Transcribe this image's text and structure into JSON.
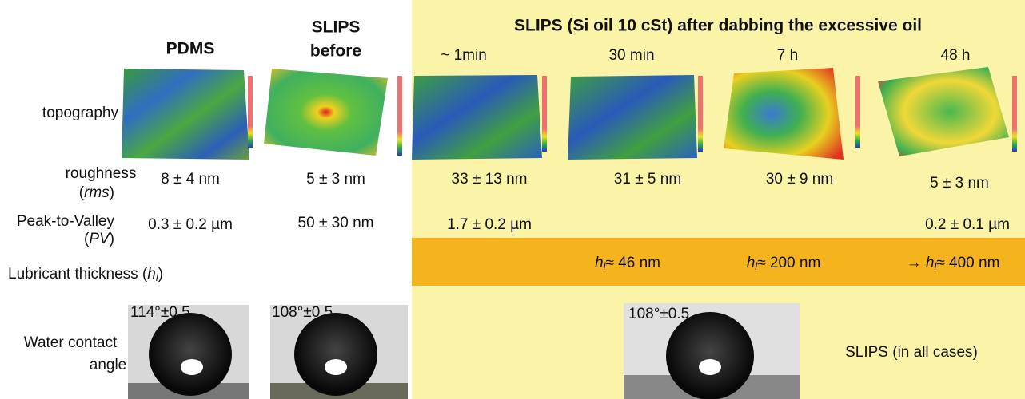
{
  "header": {
    "columns": [
      {
        "label": "PDMS"
      },
      {
        "label": [
          "SLIPS",
          "before"
        ]
      }
    ],
    "group_title": "SLIPS (Si oil 10 cSt) after dabbing the excessive oil",
    "group_columns": [
      "~ 1min",
      "30 min",
      "7 h",
      "48 h"
    ]
  },
  "rows": {
    "topography": {
      "label": "topography"
    },
    "roughness": {
      "label": "roughness",
      "symbol_open": "(",
      "symbol": "rms",
      "symbol_close": ")",
      "values": [
        "8 ± 4 nm",
        "5 ± 3 nm",
        "33 ± 13 nm",
        "31 ± 5 nm",
        "30 ± 9 nm",
        "5 ± 3 nm"
      ]
    },
    "peak_to_valley": {
      "label": "Peak-to-Valley",
      "symbol_open": "(",
      "symbol": "PV",
      "symbol_close": ")",
      "values": [
        "0.3 ± 0.2 µm",
        "50 ± 30 nm",
        "1.7 ± 0.2 µm",
        "0.2 ± 0.1 µm"
      ]
    },
    "lubricant_thickness": {
      "label": "Lubricant thickness (",
      "symbol": "h",
      "subscript": "l",
      "close": ")",
      "values": [
        {
          "prefix": "",
          "symbol": "h",
          "subscript": "l",
          "text": "≈ 46 nm"
        },
        {
          "prefix": "",
          "symbol": "h",
          "subscript": "l",
          "text": "≈ 200 nm"
        },
        {
          "prefix": "→ ",
          "symbol": "h",
          "subscript": "l",
          "text": "≈ 400 nm"
        }
      ]
    },
    "contact_angle": {
      "label": [
        "Water contact",
        "angle"
      ],
      "values": [
        "114°±0.5",
        "108°±0.5",
        "108°±0.5"
      ],
      "note": "SLIPS  (in all cases)"
    }
  }
}
